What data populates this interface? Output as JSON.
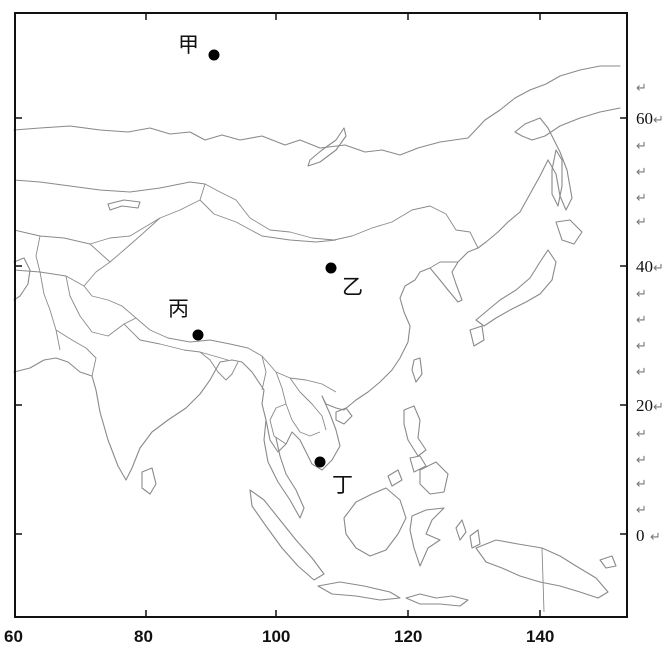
{
  "map": {
    "x_ticks": [
      "60",
      "80",
      "100",
      "120",
      "140"
    ],
    "y_ticks": [
      "60",
      "40",
      "20",
      "0"
    ],
    "paragraph_mark": "↵",
    "points": [
      {
        "label": "甲"
      },
      {
        "label": "乙"
      },
      {
        "label": "丙"
      },
      {
        "label": "丁"
      }
    ],
    "colors": {
      "land_outline": "#8a8a8a",
      "frame": "#111111",
      "point": "#000000"
    }
  }
}
